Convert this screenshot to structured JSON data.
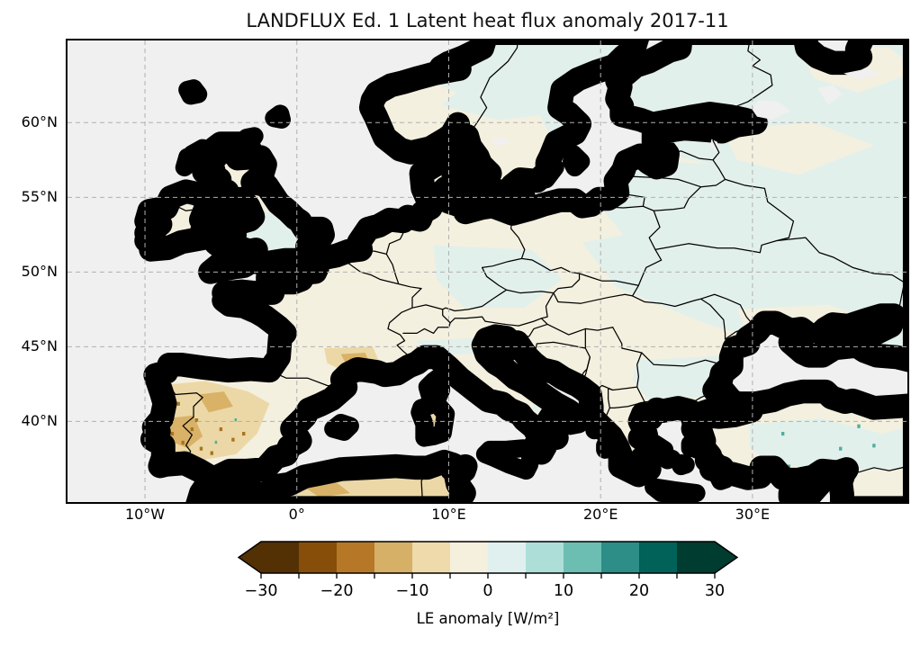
{
  "figure": {
    "title": "LANDFLUX Ed. 1 Latent heat flux anomaly 2017-11",
    "background": "#ffffff"
  },
  "chart_data": {
    "type": "heatmap",
    "subtype": "geographic anomaly map (filled lat-lon grid over Europe)",
    "title": "LANDFLUX Ed. 1 Latent heat flux anomaly 2017-11",
    "dataset": "LANDFLUX Ed. 1",
    "variable": "Latent heat flux anomaly",
    "period": "2017-11",
    "region": "Europe",
    "projection": "equirectangular (PlateCarree)",
    "extent": {
      "lon_min": -15.1,
      "lon_max": 40.2,
      "lat_min": 34.6,
      "lat_max": 65.5
    },
    "xaxis": {
      "tick_values": [
        -10,
        0,
        10,
        20,
        30
      ],
      "tick_labels": [
        "10°W",
        "0°",
        "10°E",
        "20°E",
        "30°E"
      ]
    },
    "yaxis": {
      "tick_values": [
        60,
        55,
        50,
        45,
        40
      ],
      "tick_labels": [
        "60°N",
        "55°N",
        "50°N",
        "45°N",
        "40°N"
      ]
    },
    "grid": {
      "visible": true,
      "style": "dashed",
      "color": "#b0b0b0"
    },
    "colorbar": {
      "label": "LE anomaly [W/m²]",
      "units": "W/m²",
      "orientation": "horizontal",
      "colormap": "BrBG (12 discrete levels)",
      "extend": "both",
      "levels": [
        -30,
        -25,
        -20,
        -15,
        -10,
        -5,
        0,
        5,
        10,
        15,
        20,
        25,
        30
      ],
      "segment_colors": [
        "#543005",
        "#874e0a",
        "#b67827",
        "#d6b067",
        "#eedaaa",
        "#f5efde",
        "#e0f0ee",
        "#addfd8",
        "#6cbeb3",
        "#2c8e86",
        "#01625a",
        "#003c30"
      ],
      "under_color": "#543005",
      "over_color": "#003c30",
      "tick_values": [
        -30,
        -20,
        -10,
        0,
        10,
        20,
        30
      ],
      "tick_labels": [
        "−30",
        "−20",
        "−10",
        "0",
        "10",
        "20",
        "30"
      ]
    },
    "map_colors": {
      "ocean_no_data": "#f0f0f0",
      "land_weak_negative": "#f4f0df",
      "land_weak_positive": "#e2f0ec",
      "moderate_negative": "#ecd8a6",
      "strong_negative": "#d9b268",
      "speckle_negative": "#a8741f",
      "speckle_positive": "#4fae9f",
      "coastline": "#000000"
    },
    "anomaly_patterns": [
      {
        "region": "Iberian Peninsula (esp. Portugal, western Spain)",
        "anomaly_wm2": "-5 to -15"
      },
      {
        "region": "Southern France (Languedoc/Provence)",
        "anomaly_wm2": "-5 to -15"
      },
      {
        "region": "Scandinavia, Baltics, western Russia",
        "anomaly_wm2": "0 to +5"
      },
      {
        "region": "Western/central Europe lowlands",
        "anomaly_wm2": "0 to -5"
      },
      {
        "region": "Central and eastern Turkey",
        "anomaly_wm2": "0 to +10 with local teal spots"
      },
      {
        "region": "North Africa coast strip",
        "anomaly_wm2": "0 to -10"
      }
    ]
  }
}
